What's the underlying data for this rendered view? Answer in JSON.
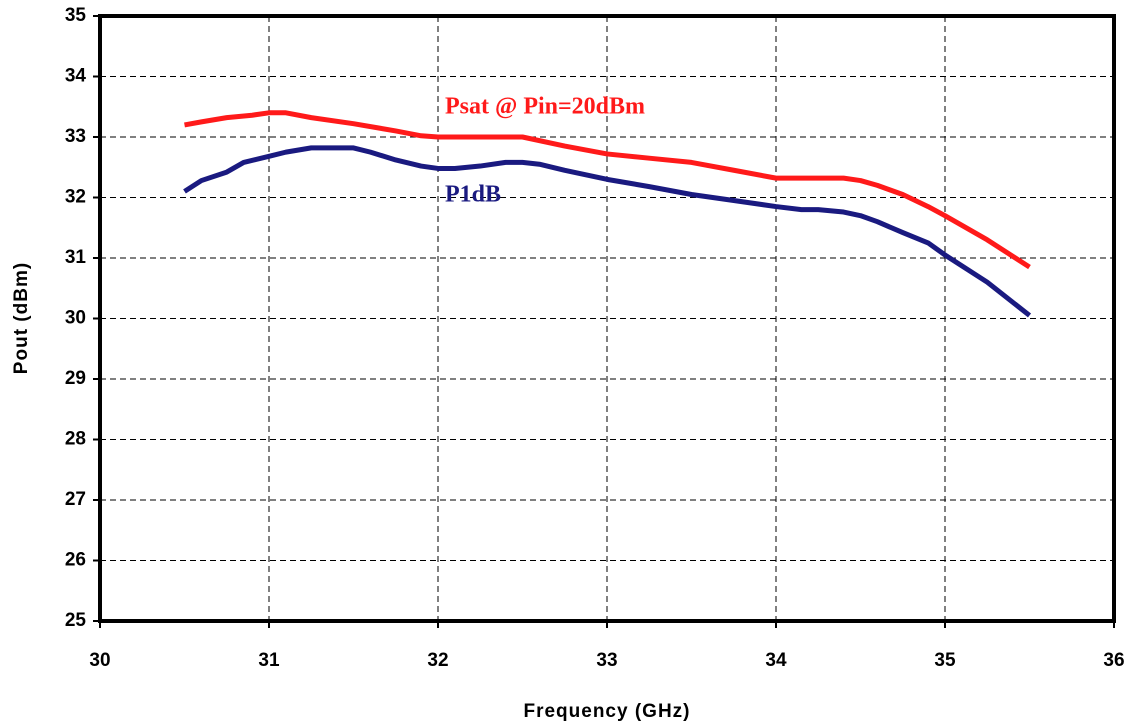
{
  "chart_data": {
    "type": "line",
    "xlabel": "Frequency (GHz)",
    "ylabel": "Pout (dBm)",
    "xlim": [
      30,
      36
    ],
    "xticks": [
      30,
      31,
      32,
      33,
      34,
      35,
      36
    ],
    "ylim": [
      25,
      35
    ],
    "yticks": [
      25,
      26,
      27,
      28,
      29,
      30,
      31,
      32,
      33,
      34,
      35
    ],
    "grid": true,
    "series": [
      {
        "name": "Psat @ Pin=20dBm",
        "color": "#ff1a1a",
        "x": [
          30.5,
          30.6,
          30.75,
          30.9,
          31,
          31.1,
          31.25,
          31.5,
          31.75,
          31.9,
          32,
          32.25,
          32.5,
          32.75,
          33,
          33.25,
          33.5,
          33.75,
          34,
          34.25,
          34.4,
          34.5,
          34.6,
          34.75,
          34.9,
          35,
          35.25,
          35.5
        ],
        "values": [
          33.2,
          33.25,
          33.32,
          33.36,
          33.4,
          33.4,
          33.32,
          33.22,
          33.1,
          33.02,
          33,
          33,
          33,
          32.85,
          32.72,
          32.65,
          32.58,
          32.45,
          32.32,
          32.32,
          32.32,
          32.28,
          32.2,
          32.05,
          31.85,
          31.7,
          31.3,
          30.85
        ]
      },
      {
        "name": "P1dB",
        "color": "#1a1a80",
        "x": [
          30.5,
          30.6,
          30.75,
          30.85,
          31,
          31.1,
          31.25,
          31.5,
          31.6,
          31.75,
          31.9,
          32,
          32.1,
          32.25,
          32.4,
          32.5,
          32.6,
          32.75,
          33,
          33.25,
          33.5,
          33.75,
          34,
          34.15,
          34.25,
          34.4,
          34.5,
          34.6,
          34.75,
          34.9,
          35,
          35.25,
          35.5
        ],
        "values": [
          32.1,
          32.28,
          32.42,
          32.58,
          32.68,
          32.75,
          32.82,
          32.82,
          32.75,
          32.62,
          32.52,
          32.48,
          32.48,
          32.52,
          32.58,
          32.58,
          32.55,
          32.45,
          32.3,
          32.18,
          32.05,
          31.95,
          31.85,
          31.8,
          31.8,
          31.76,
          31.7,
          31.6,
          31.42,
          31.25,
          31.05,
          30.6,
          30.05
        ]
      }
    ]
  }
}
